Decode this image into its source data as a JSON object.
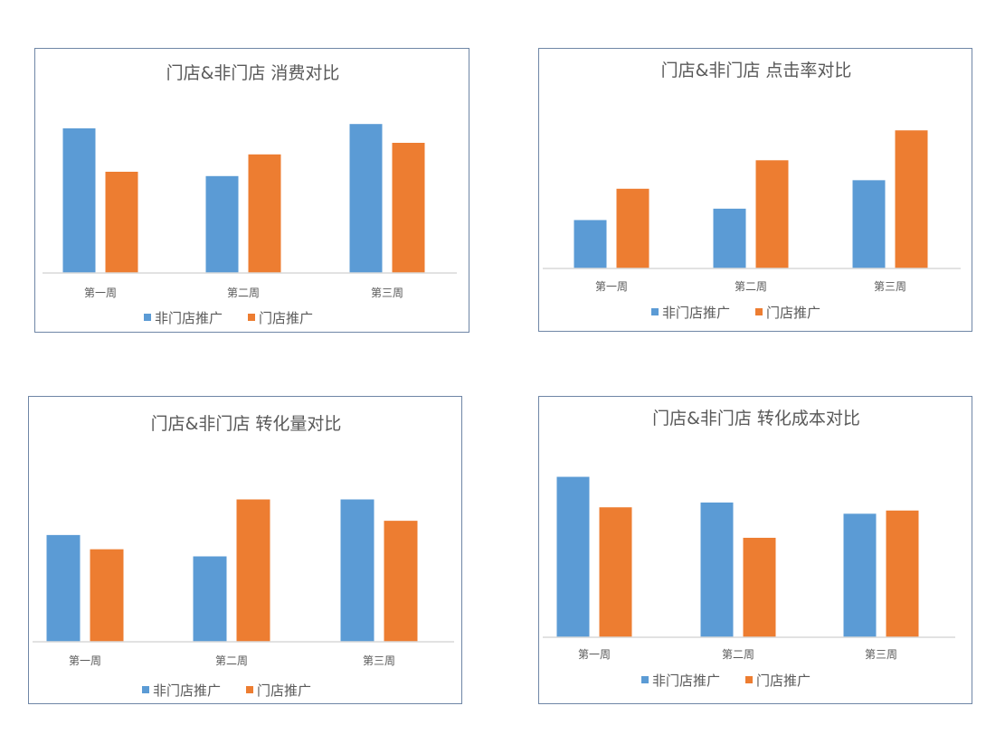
{
  "chart_data": [
    {
      "type": "bar",
      "title": "门店&非门店 消费对比",
      "categories": [
        "第一周",
        "第二周",
        "第三周"
      ],
      "series": [
        {
          "name": "非门店推广",
          "values": [
            100,
            67,
            103
          ]
        },
        {
          "name": "门店推广",
          "values": [
            70,
            82,
            90
          ]
        }
      ],
      "ylim": [
        0,
        120
      ],
      "grid": false,
      "legend_position": "bottom"
    },
    {
      "type": "bar",
      "title": "门店&非门店 点击率对比",
      "categories": [
        "第一周",
        "第二周",
        "第三周"
      ],
      "series": [
        {
          "name": "非门店推广",
          "values": [
            34,
            42,
            62
          ]
        },
        {
          "name": "门店推广",
          "values": [
            56,
            76,
            97
          ]
        }
      ],
      "ylim": [
        0,
        120
      ],
      "grid": false,
      "legend_position": "bottom"
    },
    {
      "type": "bar",
      "title": "门店&非门店 转化量对比",
      "categories": [
        "第一周",
        "第二周",
        "第三周"
      ],
      "series": [
        {
          "name": "非门店推广",
          "values": [
            75,
            60,
            100
          ]
        },
        {
          "name": "门店推广",
          "values": [
            65,
            100,
            85
          ]
        }
      ],
      "ylim": [
        0,
        120
      ],
      "grid": false,
      "legend_position": "bottom"
    },
    {
      "type": "bar",
      "title": "门店&非门店 转化成本对比",
      "categories": [
        "第一周",
        "第二周",
        "第三周"
      ],
      "series": [
        {
          "name": "非门店推广",
          "values": [
            100,
            84,
            77
          ]
        },
        {
          "name": "门店推广",
          "values": [
            81,
            62,
            79
          ]
        }
      ],
      "ylim": [
        0,
        120
      ],
      "grid": false,
      "legend_position": "bottom"
    }
  ],
  "colors": {
    "series_0": "#5b9bd5",
    "series_1": "#ed7d31",
    "axis": "#d9d9d9",
    "text": "#595959",
    "border": "#6f86a6"
  }
}
